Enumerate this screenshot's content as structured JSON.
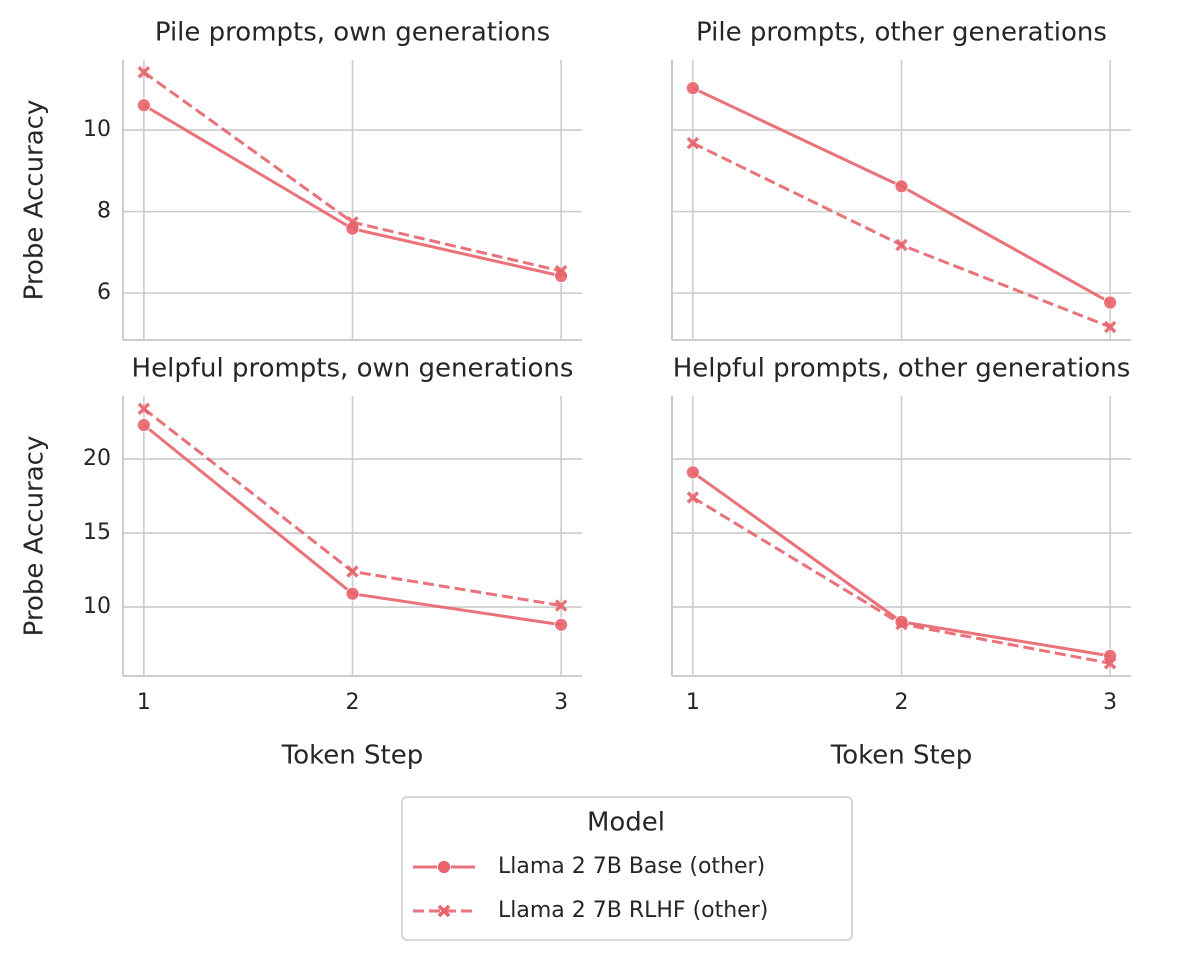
{
  "chart_data": [
    {
      "type": "line",
      "title": "Pile prompts, own generations",
      "ylabel": "Probe Accuracy",
      "x": [
        1,
        2,
        3
      ],
      "xlim": [
        0.9,
        3.1
      ],
      "xticks": [
        1,
        2,
        3
      ],
      "show_xticklabels": false,
      "ylim": [
        4.85,
        11.72
      ],
      "yticks": [
        6,
        8,
        10
      ],
      "show_yticklabels": true,
      "grid": true,
      "series": [
        {
          "name": "Llama 2 7B Base (other)",
          "color": "#e8636b",
          "marker": "circle",
          "dash": false,
          "values": [
            10.61,
            7.58,
            6.42
          ]
        },
        {
          "name": "Llama 2 7B RLHF (other)",
          "color": "#e8636b",
          "marker": "x",
          "dash": true,
          "values": [
            11.42,
            7.74,
            6.54
          ]
        }
      ]
    },
    {
      "type": "line",
      "title": "Pile prompts, other generations",
      "x": [
        1,
        2,
        3
      ],
      "xlim": [
        0.9,
        3.1
      ],
      "xticks": [
        1,
        2,
        3
      ],
      "show_xticklabels": false,
      "ylim": [
        4.85,
        11.72
      ],
      "yticks": [
        6,
        8,
        10
      ],
      "show_yticklabels": false,
      "grid": true,
      "series": [
        {
          "color": "#e8636b",
          "marker": "circle",
          "dash": false,
          "values": [
            11.03,
            8.62,
            5.77
          ]
        },
        {
          "color": "#e8636b",
          "marker": "x",
          "dash": true,
          "values": [
            9.68,
            7.18,
            5.17
          ]
        }
      ]
    },
    {
      "type": "line",
      "title": "Helpful prompts, own generations",
      "ylabel": "Probe Accuracy",
      "xlabel": "Token Step",
      "x": [
        1,
        2,
        3
      ],
      "xlim": [
        0.9,
        3.1
      ],
      "xticks": [
        1,
        2,
        3
      ],
      "show_xticklabels": true,
      "ylim": [
        5.34,
        24.26
      ],
      "yticks": [
        10,
        15,
        20
      ],
      "show_yticklabels": true,
      "grid": true,
      "series": [
        {
          "color": "#e8636b",
          "marker": "circle",
          "dash": false,
          "values": [
            22.3,
            10.9,
            8.8
          ]
        },
        {
          "color": "#e8636b",
          "marker": "x",
          "dash": true,
          "values": [
            23.4,
            12.4,
            10.1
          ]
        }
      ]
    },
    {
      "type": "line",
      "title": "Helpful prompts, other generations",
      "xlabel": "Token Step",
      "x": [
        1,
        2,
        3
      ],
      "xlim": [
        0.9,
        3.1
      ],
      "xticks": [
        1,
        2,
        3
      ],
      "show_xticklabels": true,
      "ylim": [
        5.34,
        24.26
      ],
      "yticks": [
        10,
        15,
        20
      ],
      "show_yticklabels": false,
      "grid": true,
      "series": [
        {
          "color": "#e8636b",
          "marker": "circle",
          "dash": false,
          "values": [
            19.1,
            9.0,
            6.7
          ]
        },
        {
          "color": "#e8636b",
          "marker": "x",
          "dash": true,
          "values": [
            17.4,
            8.85,
            6.2
          ]
        }
      ]
    }
  ],
  "legend": {
    "title": "Model"
  }
}
